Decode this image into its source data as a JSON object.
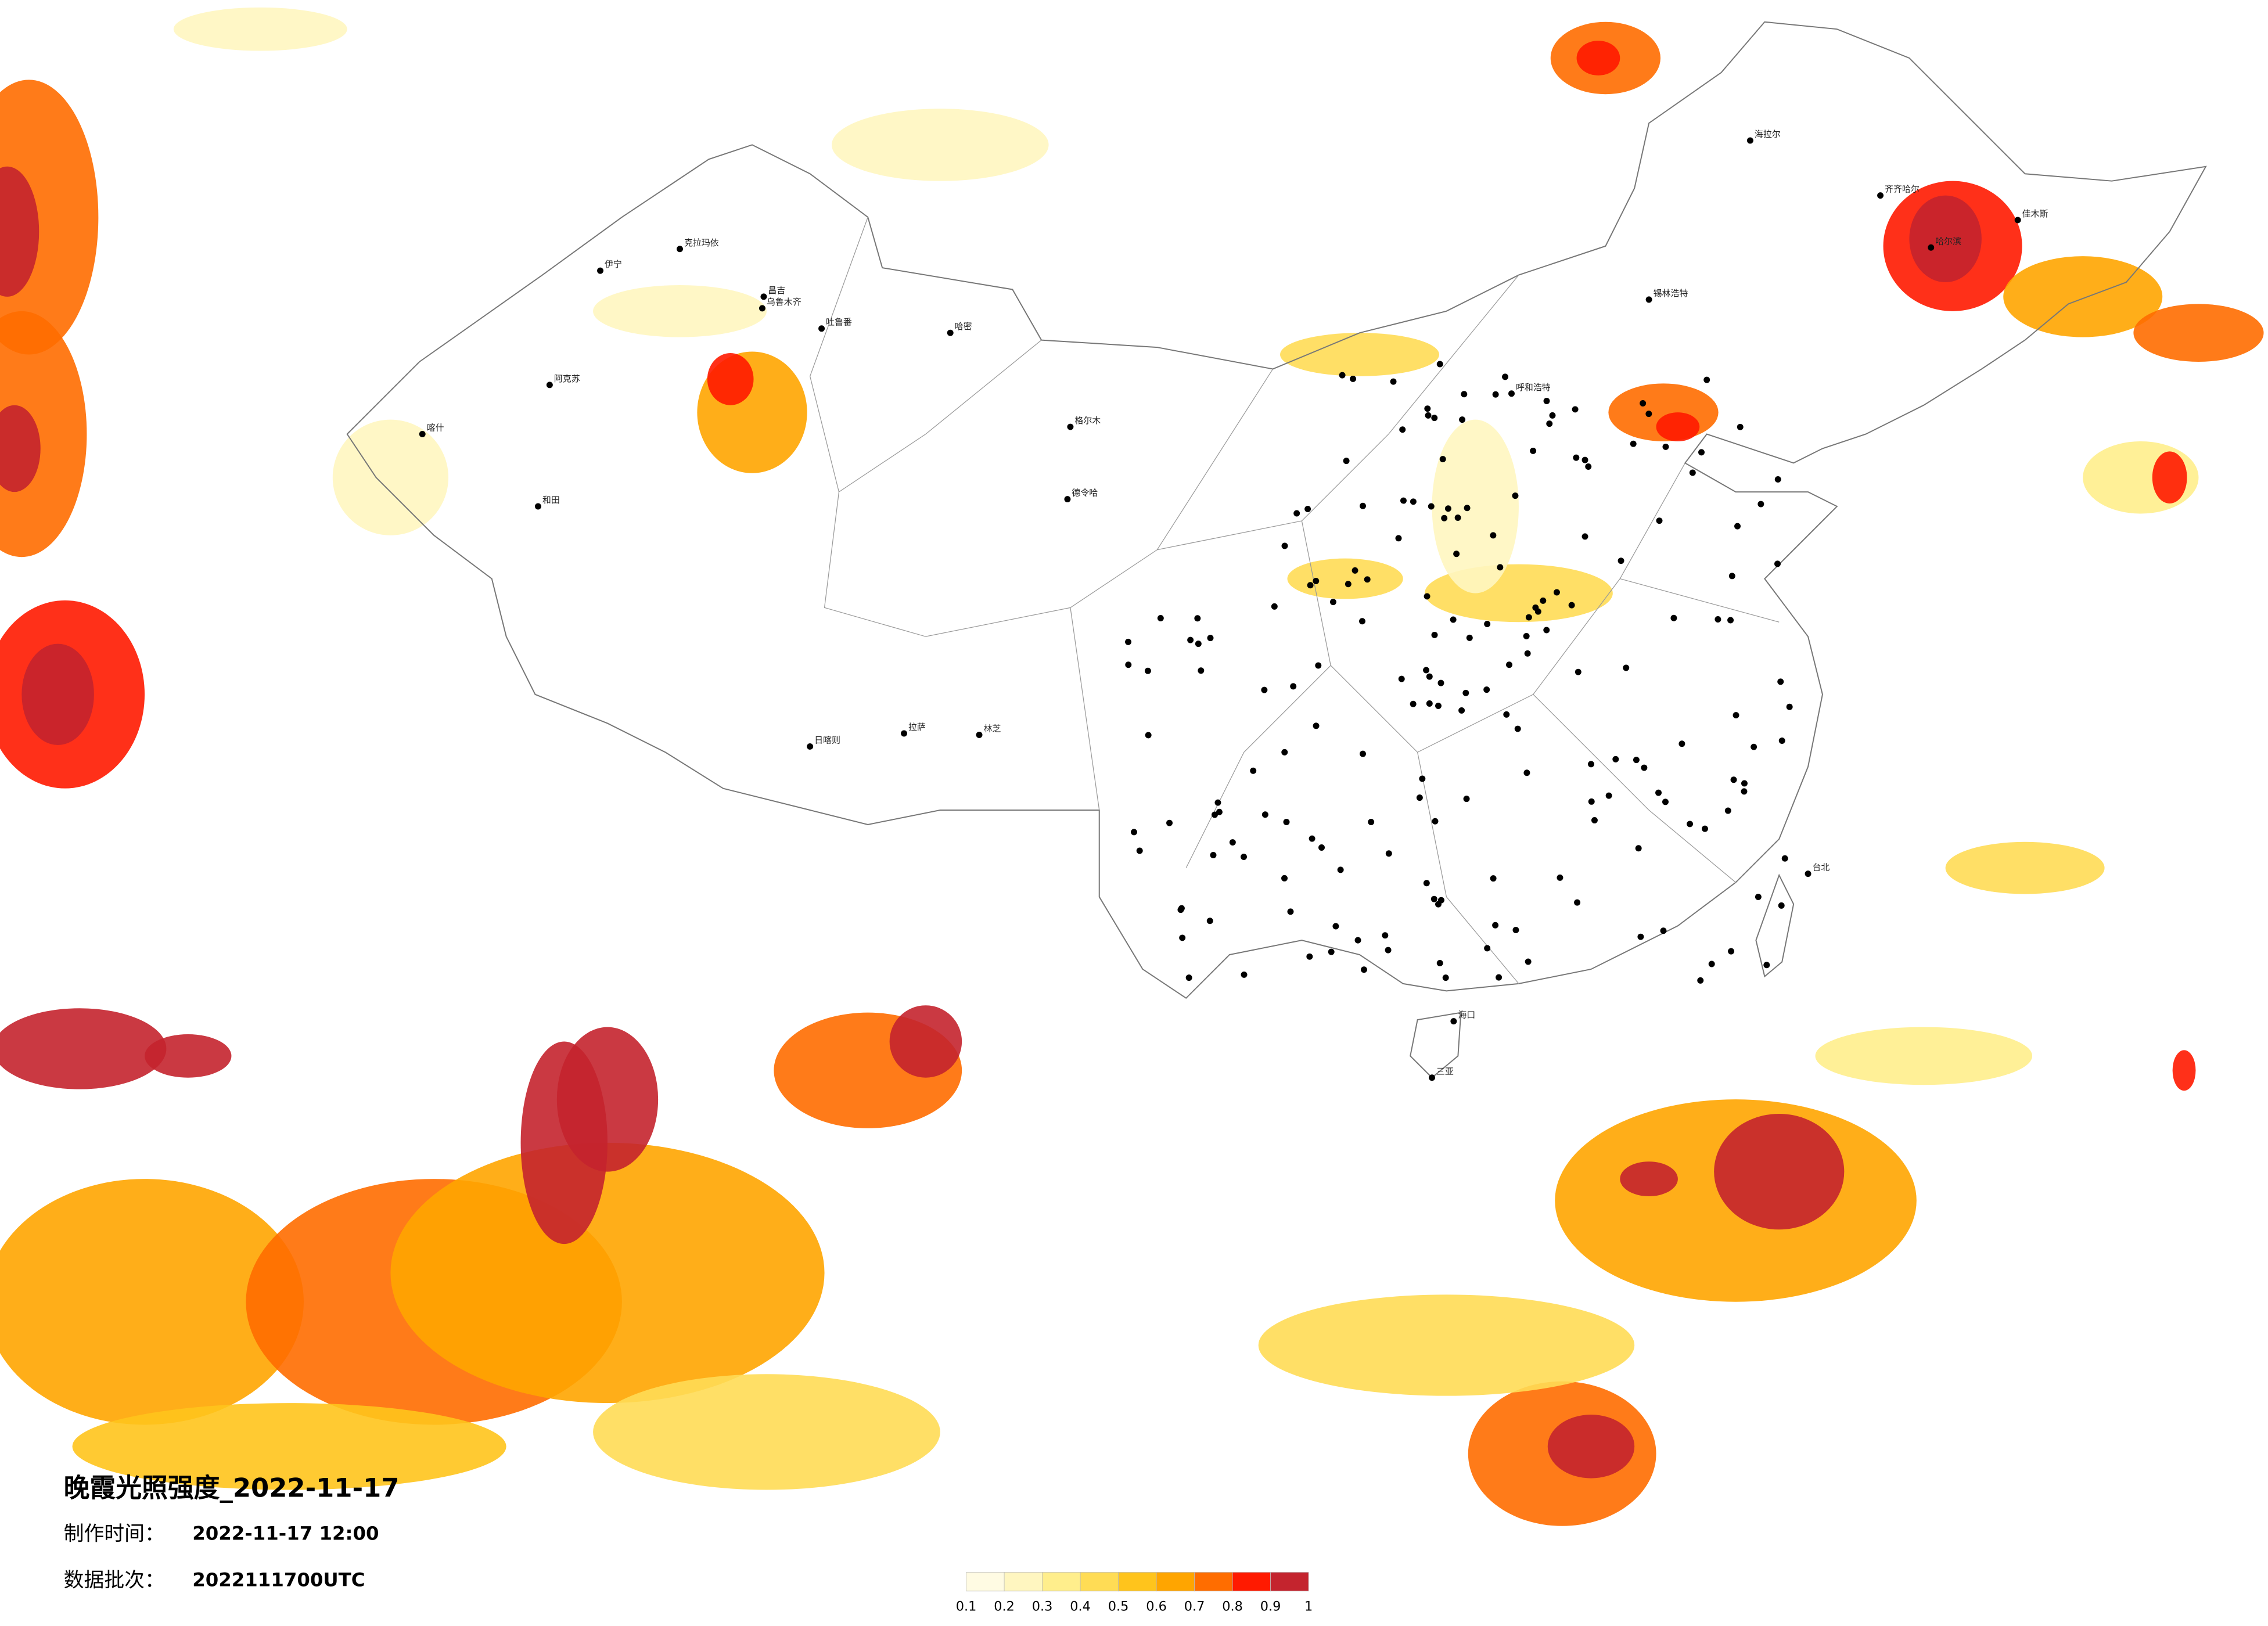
{
  "map": {
    "title": "晚霞光照强度_2022-11-17",
    "made_label": "制作时间：",
    "made_time": "2022-11-17 12:00",
    "batch_label": "数据批次：",
    "batch": "2022111700UTC",
    "legend": {
      "colors": [
        "#fffbe3",
        "#fff6c0",
        "#ffee8c",
        "#ffdc55",
        "#ffc41c",
        "#ffa500",
        "#ff6d00",
        "#ff1a00",
        "#c4242e"
      ],
      "labels": [
        0.1,
        0.2,
        0.3,
        0.4,
        0.5,
        0.6,
        0.7,
        0.8,
        0.9,
        1
      ]
    },
    "cities": [
      "克拉玛依",
      "伊宁",
      "昌吉",
      "乌鲁木齐",
      "吐鲁番",
      "哈密",
      "阿克苏",
      "和田",
      "喀什",
      "格尔木",
      "德令哈",
      "日喀则",
      "拉萨",
      "林芝",
      "海拉尔",
      "齐齐哈尔",
      "哈尔滨",
      "佳木斯",
      "锡林浩特",
      "呼和浩特",
      "台北",
      "海口",
      "三亚"
    ]
  }
}
